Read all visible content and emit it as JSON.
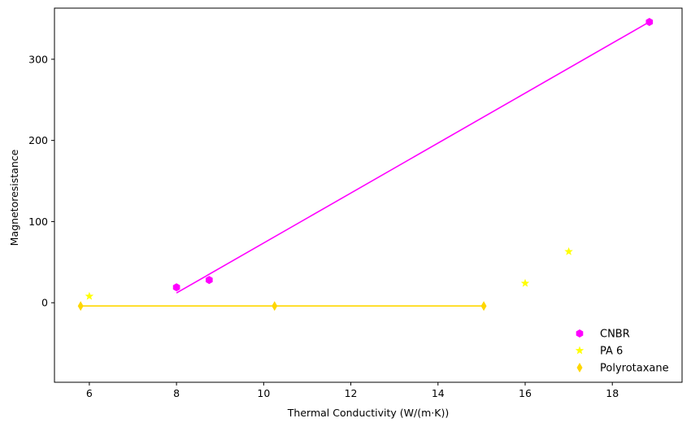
{
  "chart_data": {
    "type": "scatter",
    "xlabel": "Thermal Conductivity (W/(m·K))",
    "ylabel": "Magnetoresistance",
    "xlim": [
      5.2,
      19.6
    ],
    "ylim": [
      -98,
      363
    ],
    "xticks": [
      6,
      8,
      10,
      12,
      14,
      16,
      18
    ],
    "yticks": [
      0,
      100,
      200,
      300
    ],
    "legend_position": "lower-right",
    "grid": false,
    "series": [
      {
        "name": "CNBR",
        "marker": "hexagon",
        "color": "#ff00ff",
        "points": [
          [
            8.0,
            19
          ],
          [
            8.75,
            28
          ],
          [
            18.85,
            346
          ]
        ],
        "fit_line": [
          [
            8.0,
            12
          ],
          [
            18.85,
            346
          ]
        ]
      },
      {
        "name": "PA 6",
        "marker": "star",
        "color": "#ffff00",
        "points": [
          [
            6.0,
            8
          ],
          [
            16.0,
            24
          ],
          [
            17.0,
            63
          ]
        ]
      },
      {
        "name": "Polyrotaxane",
        "marker": "thin-diamond",
        "color": "#ffd700",
        "points": [
          [
            5.8,
            -4
          ],
          [
            10.25,
            -4
          ],
          [
            15.05,
            -4
          ]
        ],
        "fit_line": [
          [
            5.8,
            -4
          ],
          [
            15.05,
            -4
          ]
        ]
      }
    ]
  }
}
